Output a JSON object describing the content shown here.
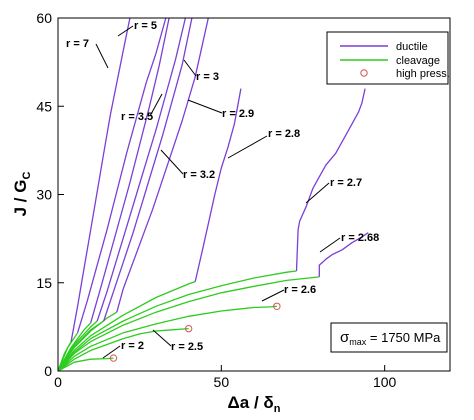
{
  "chart_data": {
    "type": "line",
    "title": "",
    "xlabel": {
      "main": "Δa",
      "sep": " / ",
      "sym": "δ",
      "sub": "n"
    },
    "ylabel": {
      "main": "J",
      "sep": " / ",
      "sym": "G",
      "sub": "C"
    },
    "xlim": [
      0,
      120
    ],
    "ylim": [
      0,
      60
    ],
    "x_ticks": [
      "0",
      "50",
      "100"
    ],
    "y_ticks": [
      "0",
      "15",
      "30",
      "45",
      "60"
    ],
    "grid": false,
    "legend_position": "top-right",
    "legend": [
      {
        "label": "ductile",
        "kind": "line",
        "color": "#7b3fd6"
      },
      {
        "label": "cleavage",
        "kind": "line",
        "color": "#2ecc1f"
      },
      {
        "label": "high press.",
        "kind": "marker",
        "color": "#d9534f"
      }
    ],
    "annotation": {
      "prefix": "σ",
      "sub": "max",
      "text": " = 1750 MPa"
    },
    "colors": {
      "ductile": "#7b3fd6",
      "cleavage": "#2ecc1f",
      "marker": "#d9534f"
    },
    "series": [
      {
        "label": "r = 2",
        "phase": "cleavage",
        "x": [
          0,
          5,
          10,
          15,
          17
        ],
        "y": [
          0,
          1.5,
          2.0,
          2.1,
          2.2
        ],
        "end_marker": true
      },
      {
        "label": "r = 2.5",
        "phase": "cleavage",
        "x": [
          0,
          5,
          10,
          15,
          20,
          25,
          30,
          35,
          40
        ],
        "y": [
          0,
          2.0,
          3.5,
          4.5,
          5.5,
          6.3,
          6.8,
          7.0,
          7.2
        ],
        "end_marker": true
      },
      {
        "label": "r = 2.6",
        "phase": "cleavage",
        "x": [
          0,
          5,
          10,
          20,
          30,
          40,
          50,
          55,
          60,
          65,
          67
        ],
        "y": [
          0,
          2.5,
          4.2,
          6.5,
          8.0,
          9.3,
          10.2,
          10.5,
          10.8,
          10.9,
          11.0
        ],
        "end_marker": true
      },
      {
        "label": "r = 2.68",
        "phase": "cleavage",
        "x": [
          0,
          5,
          10,
          20,
          30,
          40,
          50,
          60,
          70,
          80
        ],
        "y": [
          0,
          3.0,
          5.0,
          7.8,
          10.0,
          11.8,
          13.3,
          14.4,
          15.4,
          16.0
        ]
      },
      {
        "label": "r = 2.68",
        "phase": "ductile",
        "x": [
          80,
          80,
          81,
          82,
          84,
          87,
          90,
          93,
          95
        ],
        "y": [
          16.0,
          18.0,
          18.5,
          19.0,
          19.8,
          20.6,
          21.8,
          22.8,
          23.5
        ]
      },
      {
        "label": "r = 2.7",
        "phase": "cleavage",
        "x": [
          0,
          5,
          10,
          20,
          30,
          40,
          50,
          60,
          70,
          73
        ],
        "y": [
          0,
          3.2,
          5.5,
          8.5,
          11.0,
          13.0,
          14.5,
          15.8,
          16.8,
          17.0
        ]
      },
      {
        "label": "r = 2.7",
        "phase": "ductile",
        "x": [
          73,
          73.5,
          74,
          76,
          78,
          80,
          82,
          85,
          88,
          90,
          92,
          93,
          94
        ],
        "y": [
          17.0,
          24.0,
          25.5,
          28.0,
          31.0,
          33.0,
          35.0,
          37.0,
          40.0,
          42.0,
          44.0,
          45.5,
          48.0
        ]
      },
      {
        "label": "r = 2.8",
        "phase": "cleavage",
        "x": [
          0,
          5,
          10,
          20,
          30,
          40,
          42
        ],
        "y": [
          0,
          3.5,
          6.0,
          9.5,
          12.5,
          14.8,
          15.2
        ]
      },
      {
        "label": "r = 2.8",
        "phase": "ductile",
        "x": [
          42,
          44,
          46,
          48,
          50,
          52,
          54,
          56
        ],
        "y": [
          15.2,
          20.0,
          25.0,
          30.0,
          34.5,
          38.0,
          42.0,
          48.0
        ]
      },
      {
        "label": "r = 2.9",
        "phase": "cleavage",
        "x": [
          0,
          5,
          10,
          15,
          18
        ],
        "y": [
          0,
          4.0,
          6.8,
          9.0,
          10.0
        ]
      },
      {
        "label": "r = 2.9",
        "phase": "ductile",
        "x": [
          18,
          20,
          23,
          26,
          29,
          32,
          35,
          38,
          42,
          46
        ],
        "y": [
          10.0,
          14.0,
          18.5,
          23.0,
          27.5,
          32.5,
          37.5,
          42.5,
          50.0,
          60.0
        ]
      },
      {
        "label": "r = 3",
        "phase": "cleavage",
        "x": [
          0,
          5,
          10,
          14
        ],
        "y": [
          0,
          4.2,
          7.0,
          8.5
        ]
      },
      {
        "label": "r = 3",
        "phase": "ductile",
        "x": [
          14,
          17,
          20,
          23,
          26,
          29,
          32,
          35,
          38,
          41
        ],
        "y": [
          8.5,
          13.5,
          18.5,
          23.5,
          29.0,
          34.5,
          40.0,
          46.0,
          52.0,
          60.0
        ]
      },
      {
        "label": "r = 3.2",
        "phase": "cleavage",
        "x": [
          0,
          5,
          10,
          12
        ],
        "y": [
          0,
          4.5,
          7.5,
          8.5
        ]
      },
      {
        "label": "r = 3.2",
        "phase": "ductile",
        "x": [
          12,
          15,
          18,
          21,
          24,
          27,
          30,
          33,
          36,
          39
        ],
        "y": [
          8.5,
          13.5,
          19.0,
          24.5,
          30.0,
          35.5,
          41.0,
          47.0,
          53.0,
          60.0
        ]
      },
      {
        "label": "r = 3.5",
        "phase": "cleavage",
        "x": [
          0,
          4,
          8,
          10
        ],
        "y": [
          0,
          4.0,
          7.0,
          8.2
        ]
      },
      {
        "label": "r = 3.5",
        "phase": "ductile",
        "x": [
          10,
          13,
          16,
          19,
          22,
          25,
          28,
          31,
          34
        ],
        "y": [
          8.2,
          14.0,
          20.0,
          26.0,
          32.0,
          38.5,
          45.0,
          52.0,
          60.0
        ]
      },
      {
        "label": "r = 5",
        "phase": "cleavage",
        "x": [
          0,
          3,
          6
        ],
        "y": [
          0,
          4.0,
          6.5
        ]
      },
      {
        "label": "r = 5",
        "phase": "ductile",
        "x": [
          6,
          9,
          12,
          15,
          18,
          21,
          24,
          27,
          30,
          33
        ],
        "y": [
          6.5,
          12.0,
          18.0,
          24.0,
          30.5,
          37.0,
          43.0,
          49.0,
          54.0,
          60.0
        ]
      },
      {
        "label": "r = 7",
        "phase": "cleavage",
        "x": [
          0,
          2,
          4
        ],
        "y": [
          0,
          3.0,
          5.0
        ]
      },
      {
        "label": "r = 7",
        "phase": "ductile",
        "x": [
          4,
          6,
          8,
          10,
          12,
          14,
          16,
          18,
          20,
          22
        ],
        "y": [
          5.0,
          11.0,
          17.5,
          24.0,
          30.5,
          37.0,
          43.5,
          49.0,
          54.5,
          60.0
        ]
      }
    ],
    "curve_labels": [
      {
        "text": "r = 7"
      },
      {
        "text": "r = 5"
      },
      {
        "text": "r = 3"
      },
      {
        "text": "r = 3.5"
      },
      {
        "text": "r = 2.9"
      },
      {
        "text": "r = 2.8"
      },
      {
        "text": "r = 3.2"
      },
      {
        "text": "r = 2.7"
      },
      {
        "text": "r = 2.68"
      },
      {
        "text": "r = 2.6"
      },
      {
        "text": "r = 2"
      },
      {
        "text": "r = 2.5"
      }
    ]
  }
}
